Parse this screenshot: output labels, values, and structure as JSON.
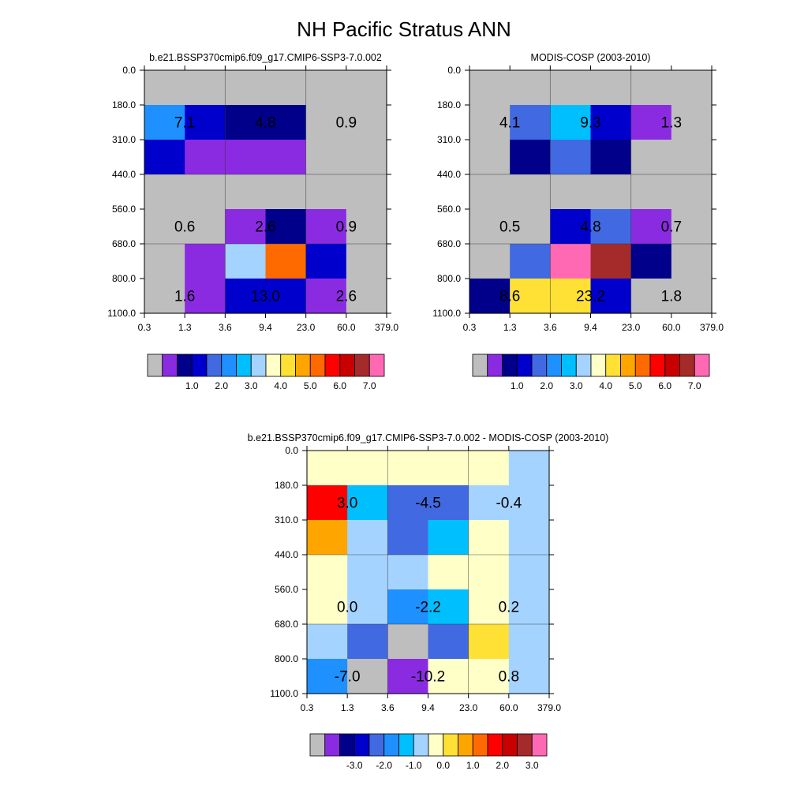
{
  "title": "NH Pacific Stratus ANN",
  "chart_data": [
    {
      "type": "heatmap",
      "title": "b.e21.BSSP370cmip6.f09_g17.CMIP6-SSP3-7.0.002",
      "x_ticks": [
        "0.3",
        "1.3",
        "3.6",
        "9.4",
        "23.0",
        "60.0",
        "379.0"
      ],
      "y_ticks": [
        "0.0",
        "180.0",
        "310.0",
        "440.0",
        "560.0",
        "680.0",
        "800.0",
        "1100.0"
      ],
      "cell_colors": [
        [
          "#BEBEBE",
          "#BEBEBE",
          "#BEBEBE",
          "#BEBEBE",
          "#BEBEBE",
          "#BEBEBE"
        ],
        [
          "#1E90FF",
          "#0000CD",
          "#00008B",
          "#00008B",
          "#BEBEBE",
          "#BEBEBE"
        ],
        [
          "#0000CD",
          "#8A2BE2",
          "#8A2BE2",
          "#8A2BE2",
          "#BEBEBE",
          "#BEBEBE"
        ],
        [
          "#BEBEBE",
          "#BEBEBE",
          "#BEBEBE",
          "#BEBEBE",
          "#BEBEBE",
          "#BEBEBE"
        ],
        [
          "#BEBEBE",
          "#BEBEBE",
          "#8A2BE2",
          "#00008B",
          "#8A2BE2",
          "#BEBEBE"
        ],
        [
          "#BEBEBE",
          "#8A2BE2",
          "#A4D3FF",
          "#FF6A00",
          "#0000CD",
          "#BEBEBE"
        ],
        [
          "#BEBEBE",
          "#8A2BE2",
          "#0000CD",
          "#0000CD",
          "#8A2BE2",
          "#BEBEBE"
        ]
      ],
      "labels": [
        {
          "col": 0,
          "row": 1,
          "text": "7.1"
        },
        {
          "col": 2,
          "row": 1,
          "text": "4.8"
        },
        {
          "col": 4,
          "row": 1,
          "text": "0.9"
        },
        {
          "col": 0,
          "row": 4,
          "text": "0.6"
        },
        {
          "col": 2,
          "row": 4,
          "text": "2.6"
        },
        {
          "col": 4,
          "row": 4,
          "text": "0.9"
        },
        {
          "col": 0,
          "row": 6,
          "text": "1.6"
        },
        {
          "col": 2,
          "row": 6,
          "text": "13.0"
        },
        {
          "col": 4,
          "row": 6,
          "text": "2.6"
        }
      ],
      "colorbar": {
        "colors": [
          "#BEBEBE",
          "#8A2BE2",
          "#00008B",
          "#0000CD",
          "#4169E1",
          "#1E90FF",
          "#00BFFF",
          "#A4D3FF",
          "#FFFFC8",
          "#FFE135",
          "#FFA500",
          "#FF6A00",
          "#FF0000",
          "#C80000",
          "#A52A2A",
          "#FF69B4"
        ],
        "labels": [
          "1.0",
          "2.0",
          "3.0",
          "4.0",
          "5.0",
          "6.0",
          "7.0"
        ],
        "label_start": 1
      }
    },
    {
      "type": "heatmap",
      "title": "MODIS-COSP (2003-2010)",
      "x_ticks": [
        "0.3",
        "1.3",
        "3.6",
        "9.4",
        "23.0",
        "60.0",
        "379.0"
      ],
      "y_ticks": [
        "0.0",
        "180.0",
        "310.0",
        "440.0",
        "560.0",
        "680.0",
        "800.0",
        "1100.0"
      ],
      "cell_colors": [
        [
          "#BEBEBE",
          "#BEBEBE",
          "#BEBEBE",
          "#BEBEBE",
          "#BEBEBE",
          "#BEBEBE"
        ],
        [
          "#BEBEBE",
          "#4169E1",
          "#00BFFF",
          "#0000CD",
          "#8A2BE2",
          "#BEBEBE"
        ],
        [
          "#BEBEBE",
          "#00008B",
          "#4169E1",
          "#00008B",
          "#BEBEBE",
          "#BEBEBE"
        ],
        [
          "#BEBEBE",
          "#BEBEBE",
          "#BEBEBE",
          "#BEBEBE",
          "#BEBEBE",
          "#BEBEBE"
        ],
        [
          "#BEBEBE",
          "#BEBEBE",
          "#0000CD",
          "#4169E1",
          "#8A2BE2",
          "#BEBEBE"
        ],
        [
          "#BEBEBE",
          "#4169E1",
          "#FF69B4",
          "#A52A2A",
          "#00008B",
          "#BEBEBE"
        ],
        [
          "#00008B",
          "#FFE135",
          "#FFE135",
          "#0000CD",
          "#BEBEBE",
          "#BEBEBE"
        ]
      ],
      "labels": [
        {
          "col": 0,
          "row": 1,
          "text": "4.1"
        },
        {
          "col": 2,
          "row": 1,
          "text": "9.3"
        },
        {
          "col": 4,
          "row": 1,
          "text": "1.3"
        },
        {
          "col": 0,
          "row": 4,
          "text": "0.5"
        },
        {
          "col": 2,
          "row": 4,
          "text": "4.8"
        },
        {
          "col": 4,
          "row": 4,
          "text": "0.7"
        },
        {
          "col": 0,
          "row": 6,
          "text": "8.6"
        },
        {
          "col": 2,
          "row": 6,
          "text": "23.2"
        },
        {
          "col": 4,
          "row": 6,
          "text": "1.8"
        }
      ],
      "colorbar": {
        "colors": [
          "#BEBEBE",
          "#8A2BE2",
          "#00008B",
          "#0000CD",
          "#4169E1",
          "#1E90FF",
          "#00BFFF",
          "#A4D3FF",
          "#FFFFC8",
          "#FFE135",
          "#FFA500",
          "#FF6A00",
          "#FF0000",
          "#C80000",
          "#A52A2A",
          "#FF69B4"
        ],
        "labels": [
          "1.0",
          "2.0",
          "3.0",
          "4.0",
          "5.0",
          "6.0",
          "7.0"
        ],
        "label_start": 1
      }
    },
    {
      "type": "heatmap",
      "title": "b.e21.BSSP370cmip6.f09_g17.CMIP6-SSP3-7.0.002 - MODIS-COSP (2003-2010)",
      "x_ticks": [
        "0.3",
        "1.3",
        "3.6",
        "9.4",
        "23.0",
        "60.0",
        "379.0"
      ],
      "y_ticks": [
        "0.0",
        "180.0",
        "310.0",
        "440.0",
        "560.0",
        "680.0",
        "800.0",
        "1100.0"
      ],
      "cell_colors": [
        [
          "#FFFFC8",
          "#FFFFC8",
          "#FFFFC8",
          "#FFFFC8",
          "#FFFFC8",
          "#A4D3FF"
        ],
        [
          "#FF0000",
          "#00BFFF",
          "#4169E1",
          "#4169E1",
          "#A4D3FF",
          "#A4D3FF"
        ],
        [
          "#FFA500",
          "#A4D3FF",
          "#4169E1",
          "#00BFFF",
          "#FFFFC8",
          "#A4D3FF"
        ],
        [
          "#FFFFC8",
          "#A4D3FF",
          "#A4D3FF",
          "#FFFFC8",
          "#FFFFC8",
          "#A4D3FF"
        ],
        [
          "#FFFFC8",
          "#A4D3FF",
          "#1E90FF",
          "#00BFFF",
          "#FFFFC8",
          "#A4D3FF"
        ],
        [
          "#A4D3FF",
          "#4169E1",
          "#BEBEBE",
          "#4169E1",
          "#FFE135",
          "#A4D3FF"
        ],
        [
          "#1E90FF",
          "#BEBEBE",
          "#8A2BE2",
          "#FFFFC8",
          "#FFFFC8",
          "#A4D3FF"
        ]
      ],
      "labels": [
        {
          "col": 0,
          "row": 1,
          "text": "3.0"
        },
        {
          "col": 2,
          "row": 1,
          "text": "-4.5"
        },
        {
          "col": 4,
          "row": 1,
          "text": "-0.4"
        },
        {
          "col": 0,
          "row": 4,
          "text": "0.0"
        },
        {
          "col": 2,
          "row": 4,
          "text": "-2.2"
        },
        {
          "col": 4,
          "row": 4,
          "text": "0.2"
        },
        {
          "col": 0,
          "row": 6,
          "text": "-7.0"
        },
        {
          "col": 2,
          "row": 6,
          "text": "-10.2"
        },
        {
          "col": 4,
          "row": 6,
          "text": "0.8"
        }
      ],
      "colorbar": {
        "colors": [
          "#BEBEBE",
          "#8A2BE2",
          "#00008B",
          "#0000CD",
          "#4169E1",
          "#1E90FF",
          "#00BFFF",
          "#A4D3FF",
          "#FFFFC8",
          "#FFE135",
          "#FFA500",
          "#FF6A00",
          "#FF0000",
          "#C80000",
          "#A52A2A",
          "#FF69B4"
        ],
        "labels": [
          "-3.0",
          "-2.0",
          "-1.0",
          "0.0",
          "1.0",
          "2.0",
          "3.0"
        ],
        "label_start": 1
      }
    }
  ]
}
